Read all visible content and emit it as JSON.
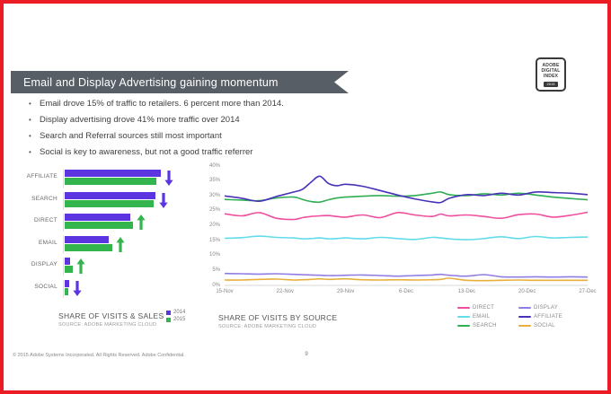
{
  "page": {
    "footer": "© 2015 Adobe Systems Incorporated.  All Rights Reserved.  Adobe Confidential.",
    "page_number": "9",
    "border_color": "#EC1C24"
  },
  "banner": {
    "title": "Email and Display Advertising gaining momentum",
    "background": "#575E66"
  },
  "logo": {
    "lines": [
      "ADOBE",
      "DIGITAL",
      "INDEX"
    ],
    "badge": "2015"
  },
  "bullets": [
    "Email drove 15% of traffic to retailers. 6 percent more than 2014.",
    "Display advertising drove 41% more traffic over 2014",
    "Search and Referral sources still most important",
    "Social is key to awareness, but not a good traffic referrer"
  ],
  "chart_data": [
    {
      "type": "bar",
      "orientation": "horizontal",
      "title": "SHARE OF VISITS & SALES",
      "source": "SOURCE: ADOBE MARKETING CLOUD",
      "categories": [
        "AFFILIATE",
        "SEARCH",
        "DIRECT",
        "EMAIL",
        "DISPLAY",
        "SOCIAL"
      ],
      "series": [
        {
          "name": "2014",
          "color": "#5C35E0",
          "values": [
            35,
            33,
            24,
            16,
            2,
            1.8
          ]
        },
        {
          "name": "2015",
          "color": "#33B44D",
          "values": [
            33.5,
            32.5,
            25,
            17.5,
            3,
            1.2
          ]
        }
      ],
      "trend_arrows": [
        "down",
        "down",
        "up",
        "up",
        "up",
        "down"
      ],
      "arrow_colors": {
        "up": "#33B44D",
        "down": "#5C35E0"
      },
      "xlim": [
        0,
        40
      ],
      "grid": false,
      "legend_position": "right-of-title"
    },
    {
      "type": "line",
      "title": "SHARE OF VISITS BY SOURCE",
      "source": "SOURCE: ADOBE MARKETING CLOUD",
      "x_days": [
        0,
        2,
        4,
        6,
        8,
        9,
        10,
        11,
        12,
        13,
        14,
        16,
        18,
        20,
        22,
        24,
        25,
        26,
        28,
        30,
        32,
        34,
        36,
        38,
        40,
        42
      ],
      "x_tick_days": [
        0,
        7,
        14,
        21,
        28,
        35,
        42
      ],
      "x_tick_labels": [
        "15-Nov",
        "22-Nov",
        "29-Nov",
        "6-Dec",
        "13-Dec",
        "20-Dec",
        "27-Dec"
      ],
      "ylim": [
        0,
        40
      ],
      "y_tick_step": 5,
      "y_unit": "%",
      "grid": false,
      "legend_position": "bottom-right",
      "series": [
        {
          "name": "SOCIAL",
          "color": "#E9AF3B",
          "values": [
            1.8,
            1.8,
            2.0,
            2.1,
            1.8,
            1.9,
            2.0,
            2.2,
            2.0,
            2.1,
            2.2,
            1.9,
            1.8,
            1.9,
            1.8,
            1.9,
            2.0,
            2.4,
            1.7,
            1.6,
            1.7,
            1.8,
            1.7,
            1.7,
            1.7,
            1.7
          ]
        },
        {
          "name": "DISPLAY",
          "color": "#8F7DE3",
          "values": [
            4.0,
            3.9,
            3.8,
            3.9,
            3.7,
            3.6,
            3.5,
            3.4,
            3.3,
            3.3,
            3.4,
            3.5,
            3.3,
            3.1,
            3.3,
            3.5,
            3.7,
            3.4,
            3.1,
            3.6,
            2.9,
            2.8,
            2.9,
            2.8,
            2.9,
            2.8
          ]
        },
        {
          "name": "EMAIL",
          "color": "#62DBEA",
          "values": [
            15.8,
            16.0,
            16.5,
            16.1,
            15.9,
            15.6,
            15.7,
            15.9,
            15.6,
            15.7,
            15.9,
            15.6,
            16.1,
            15.7,
            15.4,
            16.1,
            15.9,
            15.6,
            15.3,
            15.7,
            16.3,
            15.7,
            16.4,
            15.9,
            16.1,
            16.2
          ]
        },
        {
          "name": "DIRECT",
          "color": "#EF4F9E",
          "values": [
            24.0,
            23.3,
            24.4,
            22.5,
            22.1,
            22.7,
            23.1,
            23.3,
            23.4,
            23.1,
            22.9,
            23.6,
            22.7,
            24.4,
            23.6,
            23.1,
            23.9,
            23.3,
            23.6,
            23.1,
            22.5,
            23.7,
            23.9,
            22.9,
            23.5,
            24.5
          ]
        },
        {
          "name": "SEARCH",
          "color": "#2FAE53",
          "values": [
            28.8,
            28.6,
            28.4,
            29.3,
            29.6,
            28.8,
            28.1,
            27.9,
            28.7,
            29.3,
            29.6,
            29.9,
            30.1,
            29.9,
            30.1,
            30.9,
            31.3,
            30.4,
            30.1,
            30.7,
            30.3,
            30.9,
            30.3,
            29.6,
            29.1,
            28.7
          ]
        },
        {
          "name": "AFFILIATE",
          "color": "#4930B8",
          "values": [
            30.0,
            29.2,
            28.2,
            29.8,
            31.3,
            32.2,
            34.6,
            36.6,
            34.2,
            33.4,
            33.9,
            33.2,
            31.8,
            30.3,
            29.0,
            28.0,
            27.8,
            29.2,
            30.4,
            30.1,
            30.9,
            30.3,
            31.3,
            31.1,
            30.9,
            30.4
          ]
        }
      ],
      "legend": {
        "columns": [
          [
            "DIRECT",
            "EMAIL",
            "SEARCH"
          ],
          [
            "DISPLAY",
            "AFFILIATE",
            "SOCIAL"
          ]
        ]
      }
    }
  ]
}
